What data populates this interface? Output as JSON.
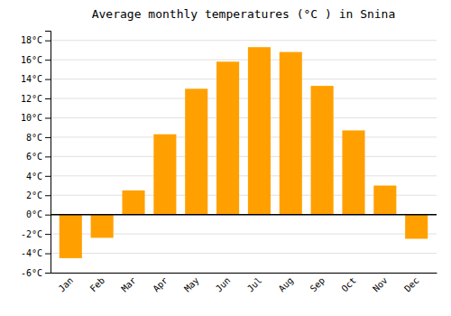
{
  "chart_data": {
    "type": "bar",
    "title": "Average monthly temperatures (°C ) in Snina",
    "categories": [
      "Jan",
      "Feb",
      "Mar",
      "Apr",
      "May",
      "Jun",
      "Jul",
      "Aug",
      "Sep",
      "Oct",
      "Nov",
      "Dec"
    ],
    "values": [
      -4.5,
      -2.4,
      2.5,
      8.3,
      13.0,
      15.8,
      17.3,
      16.8,
      13.3,
      8.7,
      3.0,
      -2.5
    ],
    "color": "#ffa000",
    "ylim": [
      -6,
      19
    ],
    "yticks": [
      {
        "value": -6,
        "label": "-6°C"
      },
      {
        "value": -4,
        "label": "-4°C"
      },
      {
        "value": -2,
        "label": "-2°C"
      },
      {
        "value": 0,
        "label": "0°C"
      },
      {
        "value": 2,
        "label": "2°C"
      },
      {
        "value": 4,
        "label": "4°C"
      },
      {
        "value": 6,
        "label": "6°C"
      },
      {
        "value": 8,
        "label": "8°C"
      },
      {
        "value": 10,
        "label": "10°C"
      },
      {
        "value": 12,
        "label": "12°C"
      },
      {
        "value": 14,
        "label": "14°C"
      },
      {
        "value": 16,
        "label": "16°C"
      },
      {
        "value": 18,
        "label": "18°C"
      }
    ],
    "grid": true
  }
}
